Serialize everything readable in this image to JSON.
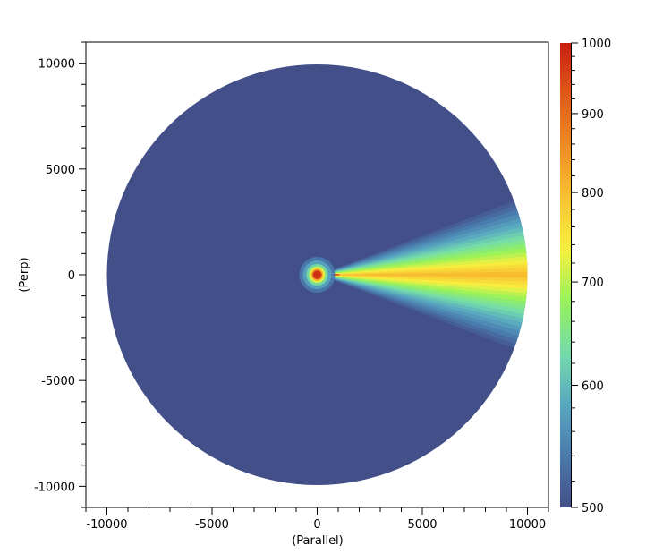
{
  "chart_data": {
    "type": "heatmap",
    "xlabel": "(Parallel)",
    "ylabel": "(Perp)",
    "xlim": [
      -11000,
      11000
    ],
    "ylim": [
      -11000,
      11000
    ],
    "xticks": [
      -10000,
      -5000,
      0,
      5000,
      10000
    ],
    "yticks": [
      -10000,
      -5000,
      0,
      5000,
      10000
    ],
    "xtick_labels": [
      "-10000",
      "-5000",
      "0",
      "5000",
      "10000"
    ],
    "ytick_labels": [
      "-10000",
      "-5000",
      "0",
      "5000",
      "10000"
    ],
    "minor_tick_step": 1000,
    "domain_radius": 10000,
    "background_value": 500,
    "plume": {
      "direction": "+x",
      "source": [
        0,
        0
      ],
      "peak_value": 1000,
      "core_value_at_edge": 800,
      "half_angle_deg": 21
    },
    "colorbar": {
      "range": [
        500,
        1000
      ],
      "scale": "log",
      "ticks": [
        500,
        600,
        700,
        800,
        900,
        1000
      ],
      "tick_labels": [
        "500",
        "600",
        "700",
        "800",
        "900",
        "1000"
      ],
      "colormap": [
        "#434f88",
        "#4a7aad",
        "#58a8c0",
        "#74dcaa",
        "#96f25a",
        "#f8f040",
        "#f8c232",
        "#f08c22",
        "#e05a18",
        "#c81e10"
      ]
    },
    "grid": false
  }
}
